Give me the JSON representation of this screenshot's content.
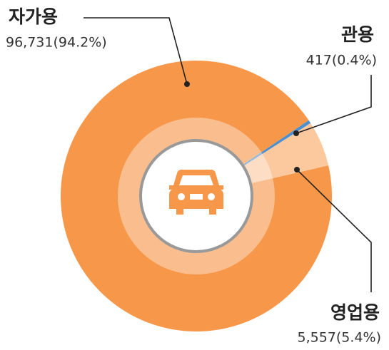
{
  "chart_data": {
    "type": "donut",
    "categories": [
      "자가용",
      "관용",
      "영업용"
    ],
    "values": [
      96731,
      417,
      5557
    ],
    "value_labels": [
      "96,731(94.2%)",
      "417(0.4%)",
      "5,557(5.4%)"
    ],
    "colors": [
      "#f7974a",
      "#4a90d0",
      "#fcc89e"
    ]
  }
}
